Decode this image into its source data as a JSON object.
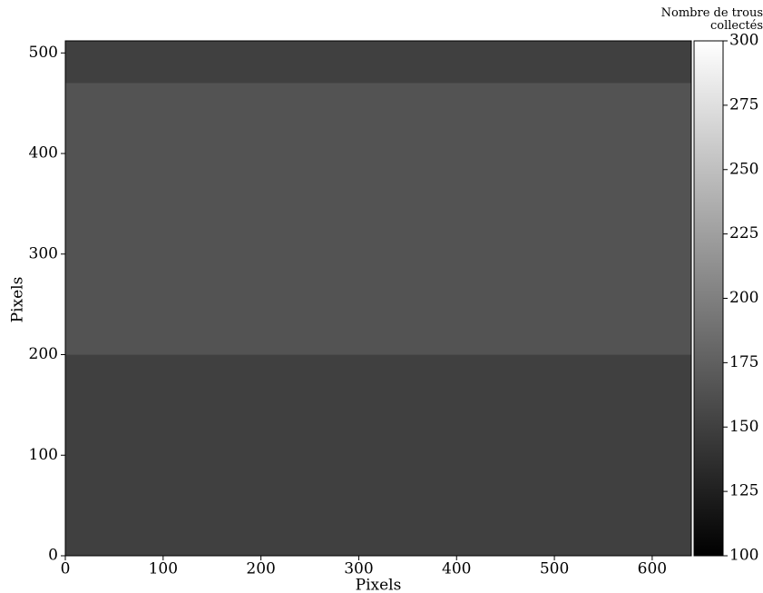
{
  "chart_data": {
    "type": "image",
    "xlabel": "Pixels",
    "ylabel": "Pixels",
    "xlim": [
      0,
      640
    ],
    "ylim": [
      0,
      512
    ],
    "xticks": [
      0,
      100,
      200,
      300,
      400,
      500,
      600
    ],
    "yticks": [
      0,
      100,
      200,
      300,
      400,
      500
    ],
    "colormap": "gray",
    "clim": [
      100,
      300
    ],
    "cticks": [
      100,
      125,
      150,
      175,
      200,
      225,
      250,
      275,
      300
    ],
    "colorbar_label": "Nombre de trous collectés",
    "regions": [
      {
        "x": [
          0,
          640
        ],
        "y": [
          0,
          200
        ],
        "value": 150
      },
      {
        "x": [
          0,
          640
        ],
        "y": [
          200,
          470
        ],
        "value": 165
      },
      {
        "x": [
          0,
          640
        ],
        "y": [
          470,
          512
        ],
        "value": 150
      }
    ]
  }
}
